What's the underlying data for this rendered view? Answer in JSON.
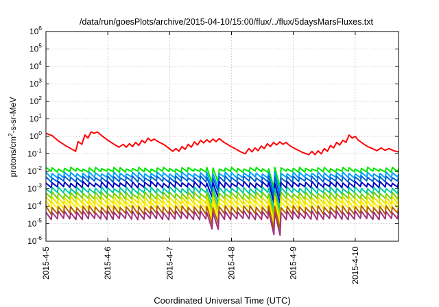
{
  "chart_data": {
    "type": "line",
    "title": "/data/run/goesPlots/archive/2015-04-10/15:00/flux/../flux/5daysMarsFluxes.txt",
    "xlabel": "Coordinated Universal Time (UTC)",
    "ylabel": {
      "pre": "protons/cm",
      "sup": "2",
      "post": "-s-sr-MeV"
    },
    "y_scale": "log",
    "ylim": [
      1e-06,
      1000000.0
    ],
    "y_ticks": [
      {
        "base": "10",
        "exp": "-6",
        "value": 1e-06
      },
      {
        "base": "10",
        "exp": "-5",
        "value": 1e-05
      },
      {
        "base": "10",
        "exp": "-4",
        "value": 0.0001
      },
      {
        "base": "10",
        "exp": "-3",
        "value": 0.001
      },
      {
        "base": "10",
        "exp": "-2",
        "value": 0.01
      },
      {
        "base": "10",
        "exp": "-1",
        "value": 0.1
      },
      {
        "base": "10",
        "exp": "0",
        "value": 1
      },
      {
        "base": "10",
        "exp": "1",
        "value": 10
      },
      {
        "base": "10",
        "exp": "2",
        "value": 100
      },
      {
        "base": "10",
        "exp": "3",
        "value": 1000
      },
      {
        "base": "10",
        "exp": "4",
        "value": 10000
      },
      {
        "base": "10",
        "exp": "5",
        "value": 100000
      },
      {
        "base": "10",
        "exp": "6",
        "value": 1000000
      }
    ],
    "x_range_days": [
      0,
      5.7
    ],
    "x_ticks": [
      {
        "label": "2015-4-5",
        "day": 0
      },
      {
        "label": "2015-4-6",
        "day": 1
      },
      {
        "label": "2015-4-7",
        "day": 2
      },
      {
        "label": "2015-4-8",
        "day": 3
      },
      {
        "label": "2015-4-9",
        "day": 4
      },
      {
        "label": "2015-4-10",
        "day": 5
      }
    ],
    "grid": true,
    "series": [
      {
        "color": "#ff0000",
        "points": [
          [
            0.0,
            1.5
          ],
          [
            0.1,
            1.1
          ],
          [
            0.2,
            0.55
          ],
          [
            0.3,
            0.32
          ],
          [
            0.4,
            0.2
          ],
          [
            0.48,
            0.14
          ],
          [
            0.52,
            0.5
          ],
          [
            0.58,
            0.35
          ],
          [
            0.63,
            1.2
          ],
          [
            0.68,
            0.8
          ],
          [
            0.73,
            1.8
          ],
          [
            0.78,
            1.5
          ],
          [
            0.83,
            1.8
          ],
          [
            0.9,
            1.1
          ],
          [
            1.0,
            0.6
          ],
          [
            1.1,
            0.35
          ],
          [
            1.18,
            0.24
          ],
          [
            1.25,
            0.35
          ],
          [
            1.3,
            0.24
          ],
          [
            1.35,
            0.38
          ],
          [
            1.4,
            0.26
          ],
          [
            1.45,
            0.45
          ],
          [
            1.5,
            0.3
          ],
          [
            1.55,
            0.6
          ],
          [
            1.6,
            0.42
          ],
          [
            1.65,
            0.8
          ],
          [
            1.7,
            0.55
          ],
          [
            1.75,
            0.7
          ],
          [
            1.82,
            0.48
          ],
          [
            1.9,
            0.35
          ],
          [
            1.98,
            0.22
          ],
          [
            2.05,
            0.14
          ],
          [
            2.1,
            0.2
          ],
          [
            2.15,
            0.14
          ],
          [
            2.2,
            0.26
          ],
          [
            2.25,
            0.18
          ],
          [
            2.3,
            0.35
          ],
          [
            2.35,
            0.24
          ],
          [
            2.4,
            0.48
          ],
          [
            2.45,
            0.32
          ],
          [
            2.5,
            0.6
          ],
          [
            2.55,
            0.42
          ],
          [
            2.6,
            0.65
          ],
          [
            2.65,
            0.46
          ],
          [
            2.7,
            0.7
          ],
          [
            2.75,
            0.5
          ],
          [
            2.8,
            0.75
          ],
          [
            2.88,
            0.45
          ],
          [
            2.98,
            0.28
          ],
          [
            3.08,
            0.18
          ],
          [
            3.15,
            0.13
          ],
          [
            3.22,
            0.1
          ],
          [
            3.28,
            0.2
          ],
          [
            3.33,
            0.13
          ],
          [
            3.38,
            0.22
          ],
          [
            3.43,
            0.15
          ],
          [
            3.48,
            0.28
          ],
          [
            3.53,
            0.2
          ],
          [
            3.58,
            0.38
          ],
          [
            3.63,
            0.26
          ],
          [
            3.68,
            0.45
          ],
          [
            3.73,
            0.32
          ],
          [
            3.78,
            0.48
          ],
          [
            3.83,
            0.35
          ],
          [
            3.88,
            0.45
          ],
          [
            3.95,
            0.28
          ],
          [
            4.05,
            0.18
          ],
          [
            4.15,
            0.12
          ],
          [
            4.25,
            0.09
          ],
          [
            4.3,
            0.14
          ],
          [
            4.35,
            0.09
          ],
          [
            4.4,
            0.15
          ],
          [
            4.45,
            0.1
          ],
          [
            4.5,
            0.2
          ],
          [
            4.55,
            0.14
          ],
          [
            4.6,
            0.3
          ],
          [
            4.65,
            0.22
          ],
          [
            4.7,
            0.45
          ],
          [
            4.75,
            0.32
          ],
          [
            4.8,
            0.6
          ],
          [
            4.85,
            0.45
          ],
          [
            4.9,
            1.2
          ],
          [
            4.95,
            0.8
          ],
          [
            5.0,
            1.0
          ],
          [
            5.05,
            0.6
          ],
          [
            5.12,
            0.4
          ],
          [
            5.2,
            0.26
          ],
          [
            5.28,
            0.2
          ],
          [
            5.35,
            0.15
          ],
          [
            5.42,
            0.22
          ],
          [
            5.48,
            0.16
          ],
          [
            5.55,
            0.2
          ],
          [
            5.62,
            0.15
          ],
          [
            5.7,
            0.13
          ]
        ]
      },
      {
        "color": "#00e600",
        "center": 0.012,
        "amp": 1.6
      },
      {
        "color": "#00a0ff",
        "center": 0.006,
        "amp": 1.8
      },
      {
        "color": "#0060d0",
        "center": 0.0035,
        "amp": 1.8
      },
      {
        "color": "#0000c0",
        "center": 0.0017,
        "amp": 1.9
      },
      {
        "color": "#00c8a0",
        "center": 0.0008,
        "amp": 2.0
      },
      {
        "color": "#70d000",
        "center": 0.0004,
        "amp": 2.1
      },
      {
        "color": "#e0e000",
        "center": 0.00022,
        "amp": 2.2
      },
      {
        "color": "#ffee00",
        "center": 0.00012,
        "amp": 2.4
      },
      {
        "color": "#b06000",
        "center": 6e-05,
        "amp": 2.5
      },
      {
        "color": "#a0307a",
        "center": 3e-05,
        "amp": 2.6
      }
    ],
    "events": [
      {
        "day": 2.75,
        "depth": 0.25
      },
      {
        "day": 3.75,
        "depth": 0.12
      }
    ],
    "oscillation_period_days": 0.1
  }
}
